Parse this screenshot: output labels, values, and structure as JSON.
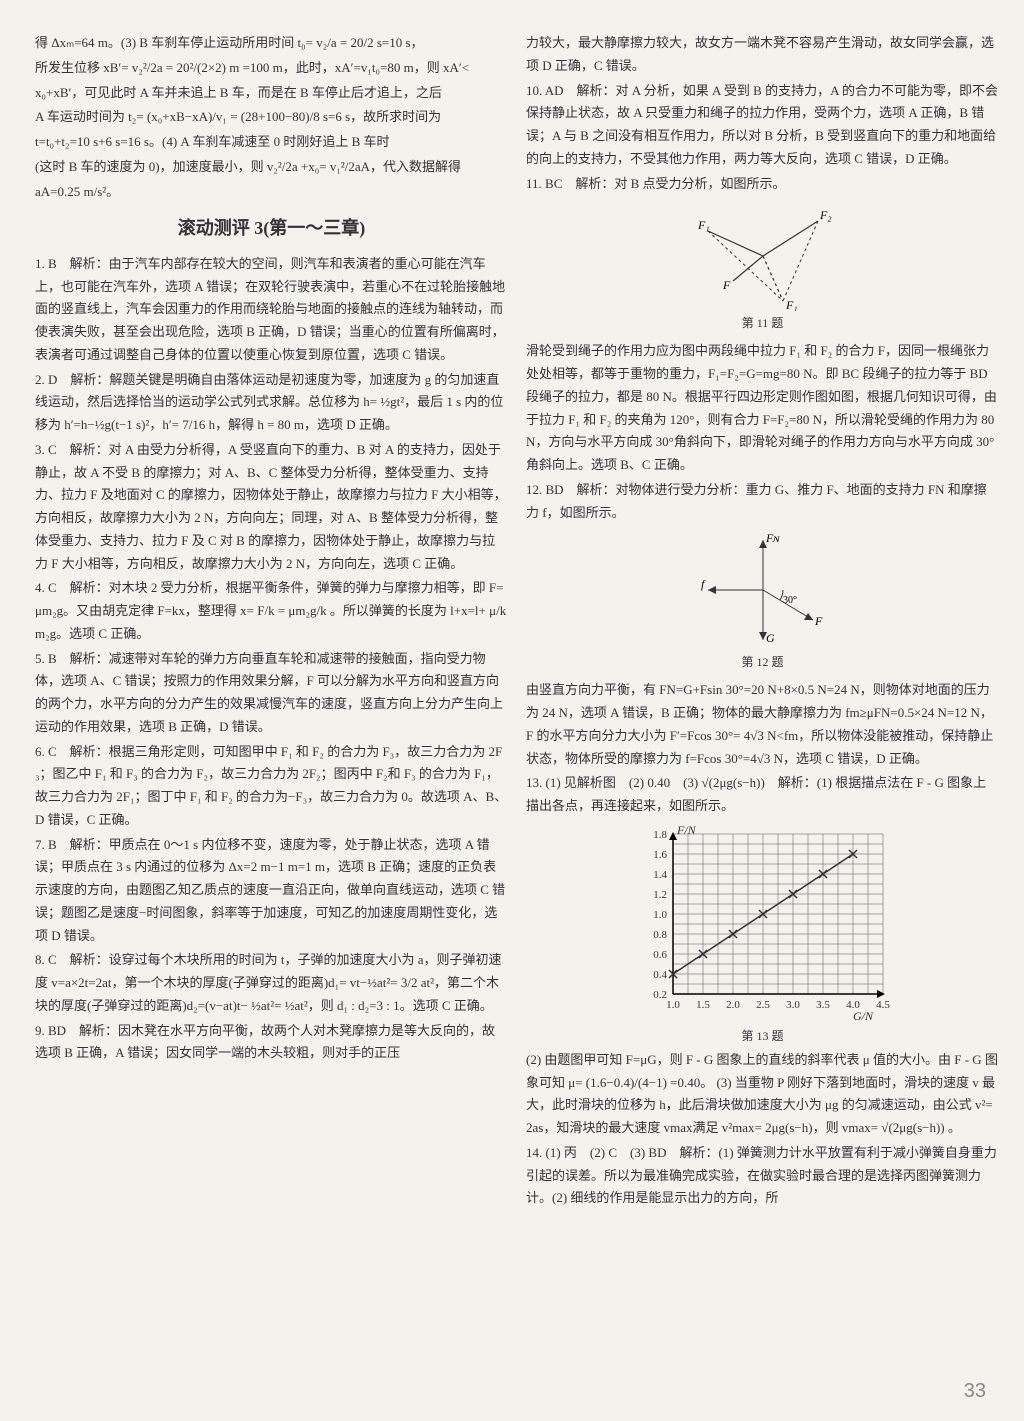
{
  "left": {
    "p1": "得 Δxₘ=64 m。(3) B 车刹车停止运动所用时间 t₀= v₂/a = 20/2 s=10 s，",
    "p2": "所发生位移 xB′= v₂²/2a = 20²/(2×2) m =100 m，此时，xA′=v₁t₀=80 m，则 xA′<",
    "p3": "x₀+xB′，可见此时 A 车并未追上 B 车，而是在 B 车停止后才追上，之后",
    "p4": "A 车运动时间为 t₂= (x₀+xB−xA)/v₁ = (28+100−80)/8 s=6 s，故所求时间为",
    "p5": "t=t₀+t₂=10 s+6 s=16 s。(4) A 车刹车减速至 0 时刚好追上 B 车时",
    "p6": "(这时 B 车的速度为 0)，加速度最小，则 v₂²/2a +x₀= v₁²/2aA，代入数据解得",
    "p7": "aA=0.25 m/s²。",
    "section_title": "滚动测评 3(第一～三章)",
    "q1": "1. B　解析：由于汽车内部存在较大的空间，则汽车和表演者的重心可能在汽车上，也可能在汽车外，选项 A 错误；在双轮行驶表演中，若重心不在过轮胎接触地面的竖直线上，汽车会因重力的作用而绕轮胎与地面的接触点的连线为轴转动，而使表演失败，甚至会出现危险，选项 B 正确，D 错误；当重心的位置有所偏离时，表演者可通过调整自己身体的位置以使重心恢复到原位置，选项 C 错误。",
    "q2": "2. D　解析：解题关键是明确自由落体运动是初速度为零，加速度为 g 的匀加速直线运动，然后选择恰当的运动学公式列式求解。总位移为 h= ½gt²，最后 1 s 内的位移为 h′=h−½g(t−1 s)²，h′= 7/16 h，解得 h = 80 m，选项 D 正确。",
    "q3": "3. C　解析：对 A 由受力分析得，A 受竖直向下的重力、B 对 A 的支持力，因处于静止，故 A 不受 B 的摩擦力；对 A、B、C 整体受力分析得，整体受重力、支持力、拉力 F 及地面对 C 的摩擦力，因物体处于静止，故摩擦力与拉力 F 大小相等，方向相反，故摩擦力大小为 2 N，方向向左；同理，对 A、B 整体受力分析得，整体受重力、支持力、拉力 F 及 C 对 B 的摩擦力，因物体处于静止，故摩擦力与拉力 F 大小相等，方向相反，故摩擦力大小为 2 N，方向向左，选项 C 正确。",
    "q4": "4. C　解析：对木块 2 受力分析，根据平衡条件，弹簧的弹力与摩擦力相等，即 F=μm₂g。又由胡克定律 F=kx，整理得 x= F/k = μm₂g/k 。所以弹簧的长度为 l+x=l+ μ/k m₂g。选项 C 正确。",
    "q5": "5. B　解析：减速带对车轮的弹力方向垂直车轮和减速带的接触面，指向受力物体，选项 A、C 错误；按照力的作用效果分解，F 可以分解为水平方向和竖直方向的两个力，水平方向的分力产生的效果减慢汽车的速度，竖直方向上分力产生向上运动的作用效果，选项 B 正确，D 错误。",
    "q6": "6. C　解析：根据三角形定则，可知图甲中 F₁ 和 F₂ 的合力为 F₃，故三力合力为 2F₃；图乙中 F₁ 和 F₃ 的合力为 F₂，故三力合力为 2F₂；图丙中 F₂和 F₃ 的合力为 F₁，故三力合力为 2F₁；图丁中 F₁ 和 F₂ 的合力为−F₃，故三力合力为 0。故选项 A、B、D 错误，C 正确。",
    "q7": "7. B　解析：甲质点在 0～1 s 内位移不变，速度为零，处于静止状态，选项 A 错误；甲质点在 3 s 内通过的位移为 Δx=2 m−1 m=1 m，选项 B 正确；速度的正负表示速度的方向，由题图乙知乙质点的速度一直沿正向，做单向直线运动，选项 C 错误；题图乙是速度−时间图象，斜率等于加速度，可知乙的加速度周期性变化，选项 D 错误。",
    "q8": "8. C　解析：设穿过每个木块所用的时间为 t，子弹的加速度大小为 a，则子弹初速度 v=a×2t=2at，第一个木块的厚度(子弹穿过的距离)d₁= vt−½at²= 3/2 at²，第二个木块的厚度(子弹穿过的距离)d₂=(v−at)t− ½at²= ½at²，则 d₁ : d₂=3 : 1。选项 C 正确。",
    "q9": "9. BD　解析：因木凳在水平方向平衡，故两个人对木凳摩擦力是等大反向的，故选项 B 正确，A 错误；因女同学一端的木头较粗，则对手的正压"
  },
  "right": {
    "p1": "力较大，最大静摩擦力较大，故女方一端木凳不容易产生滑动，故女同学会赢，选项 D 正确，C 错误。",
    "q10": "10. AD　解析：对 A 分析，如果 A 受到 B 的支持力，A 的合力不可能为零，即不会保持静止状态，故 A 只受重力和绳子的拉力作用，受两个力，选项 A 正确，B 错误；A 与 B 之间没有相互作用力，所以对 B 分析，B 受到竖直向下的重力和地面给的向上的支持力，不受其他力作用，两力等大反向，选项 C 错误，D 正确。",
    "q11_header": "11. BC　解析：对 B 点受力分析，如图所示。",
    "fig11_caption": "第 11 题",
    "q11_body": "滑轮受到绳子的作用力应为图中两段绳中拉力 F₁ 和 F₂ 的合力 F，因同一根绳张力处处相等，都等于重物的重力，F₁=F₂=G=mg=80 N。即 BC 段绳子的拉力等于 BD 段绳子的拉力，都是 80 N。根据平行四边形定则作图如图，根据几何知识可得，由于拉力 F₁ 和 F₂ 的夹角为 120°，则有合力 F=F₂=80 N，所以滑轮受绳的作用力为 80 N，方向与水平方向成 30°角斜向下，即滑轮对绳子的作用力方向与水平方向成 30°角斜向上。选项 B、C 正确。",
    "q12_header": "12. BD　解析：对物体进行受力分析：重力 G、推力 F、地面的支持力 FN 和摩擦力 f，如图所示。",
    "fig12_caption": "第 12 题",
    "q12_body": "由竖直方向力平衡，有 FN=G+Fsin 30°=20 N+8×0.5 N=24 N，则物体对地面的压力为 24 N，选项 A 错误，B 正确；物体的最大静摩擦力为 fm≥μFN=0.5×24 N=12 N，F 的水平方向分力大小为 F′=Fcos 30°= 4√3 N<fm，所以物体没能被推动，保持静止状态，物体所受的摩擦力为 f=Fcos 30°=4√3 N，选项 C 错误，D 正确。",
    "q13_header": "13. (1) 见解析图　(2) 0.40　(3) √(2μg(s−h))　解析：(1) 根据描点法在 F - G 图象上描出各点，再连接起来，如图所示。",
    "fig13_caption": "第 13 题",
    "chart": {
      "type": "scatter-line",
      "xlabel": "G/N",
      "ylabel": "F/N",
      "xlim": [
        1.0,
        4.5
      ],
      "ylim": [
        0.2,
        1.8
      ],
      "xticks": [
        "1.0",
        "1.5",
        "2.0",
        "2.5",
        "3.0",
        "3.5",
        "4.0",
        "4.5"
      ],
      "yticks": [
        "0.2",
        "0.4",
        "0.6",
        "0.8",
        "1.0",
        "1.2",
        "1.4",
        "1.6",
        "1.8"
      ],
      "points_x": [
        1.0,
        1.5,
        2.0,
        2.5,
        3.0,
        3.5,
        4.0
      ],
      "points_y": [
        0.4,
        0.6,
        0.8,
        1.0,
        1.2,
        1.4,
        1.6
      ],
      "line_color": "#333333",
      "marker": "x",
      "grid_color": "#555555",
      "bg": "#f4f2ed",
      "axis_color": "#000000",
      "fontsize": 11
    },
    "q13_body": "(2) 由题图甲可知 F=μG，则 F - G 图象上的直线的斜率代表 μ 值的大小。由 F - G 图象可知 μ= (1.6−0.4)/(4−1) =0.40。 (3) 当重物 P 刚好下落到地面时，滑块的速度 v 最大，此时滑块的位移为 h，此后滑块做加速度大小为 μg 的匀减速运动，由公式 v²=2as，知滑块的最大速度 vmax满足 v²max= 2μg(s−h)，则 vmax= √(2μg(s−h)) 。",
    "q14": "14. (1) 丙　(2) C　(3) BD　解析：(1) 弹簧测力计水平放置有利于减小弹簧自身重力引起的误差。所以为最准确完成实验，在做实验时最合理的是选择丙图弹簧测力计。(2) 细线的作用是能显示出力的方向，所"
  },
  "page_number": "33"
}
